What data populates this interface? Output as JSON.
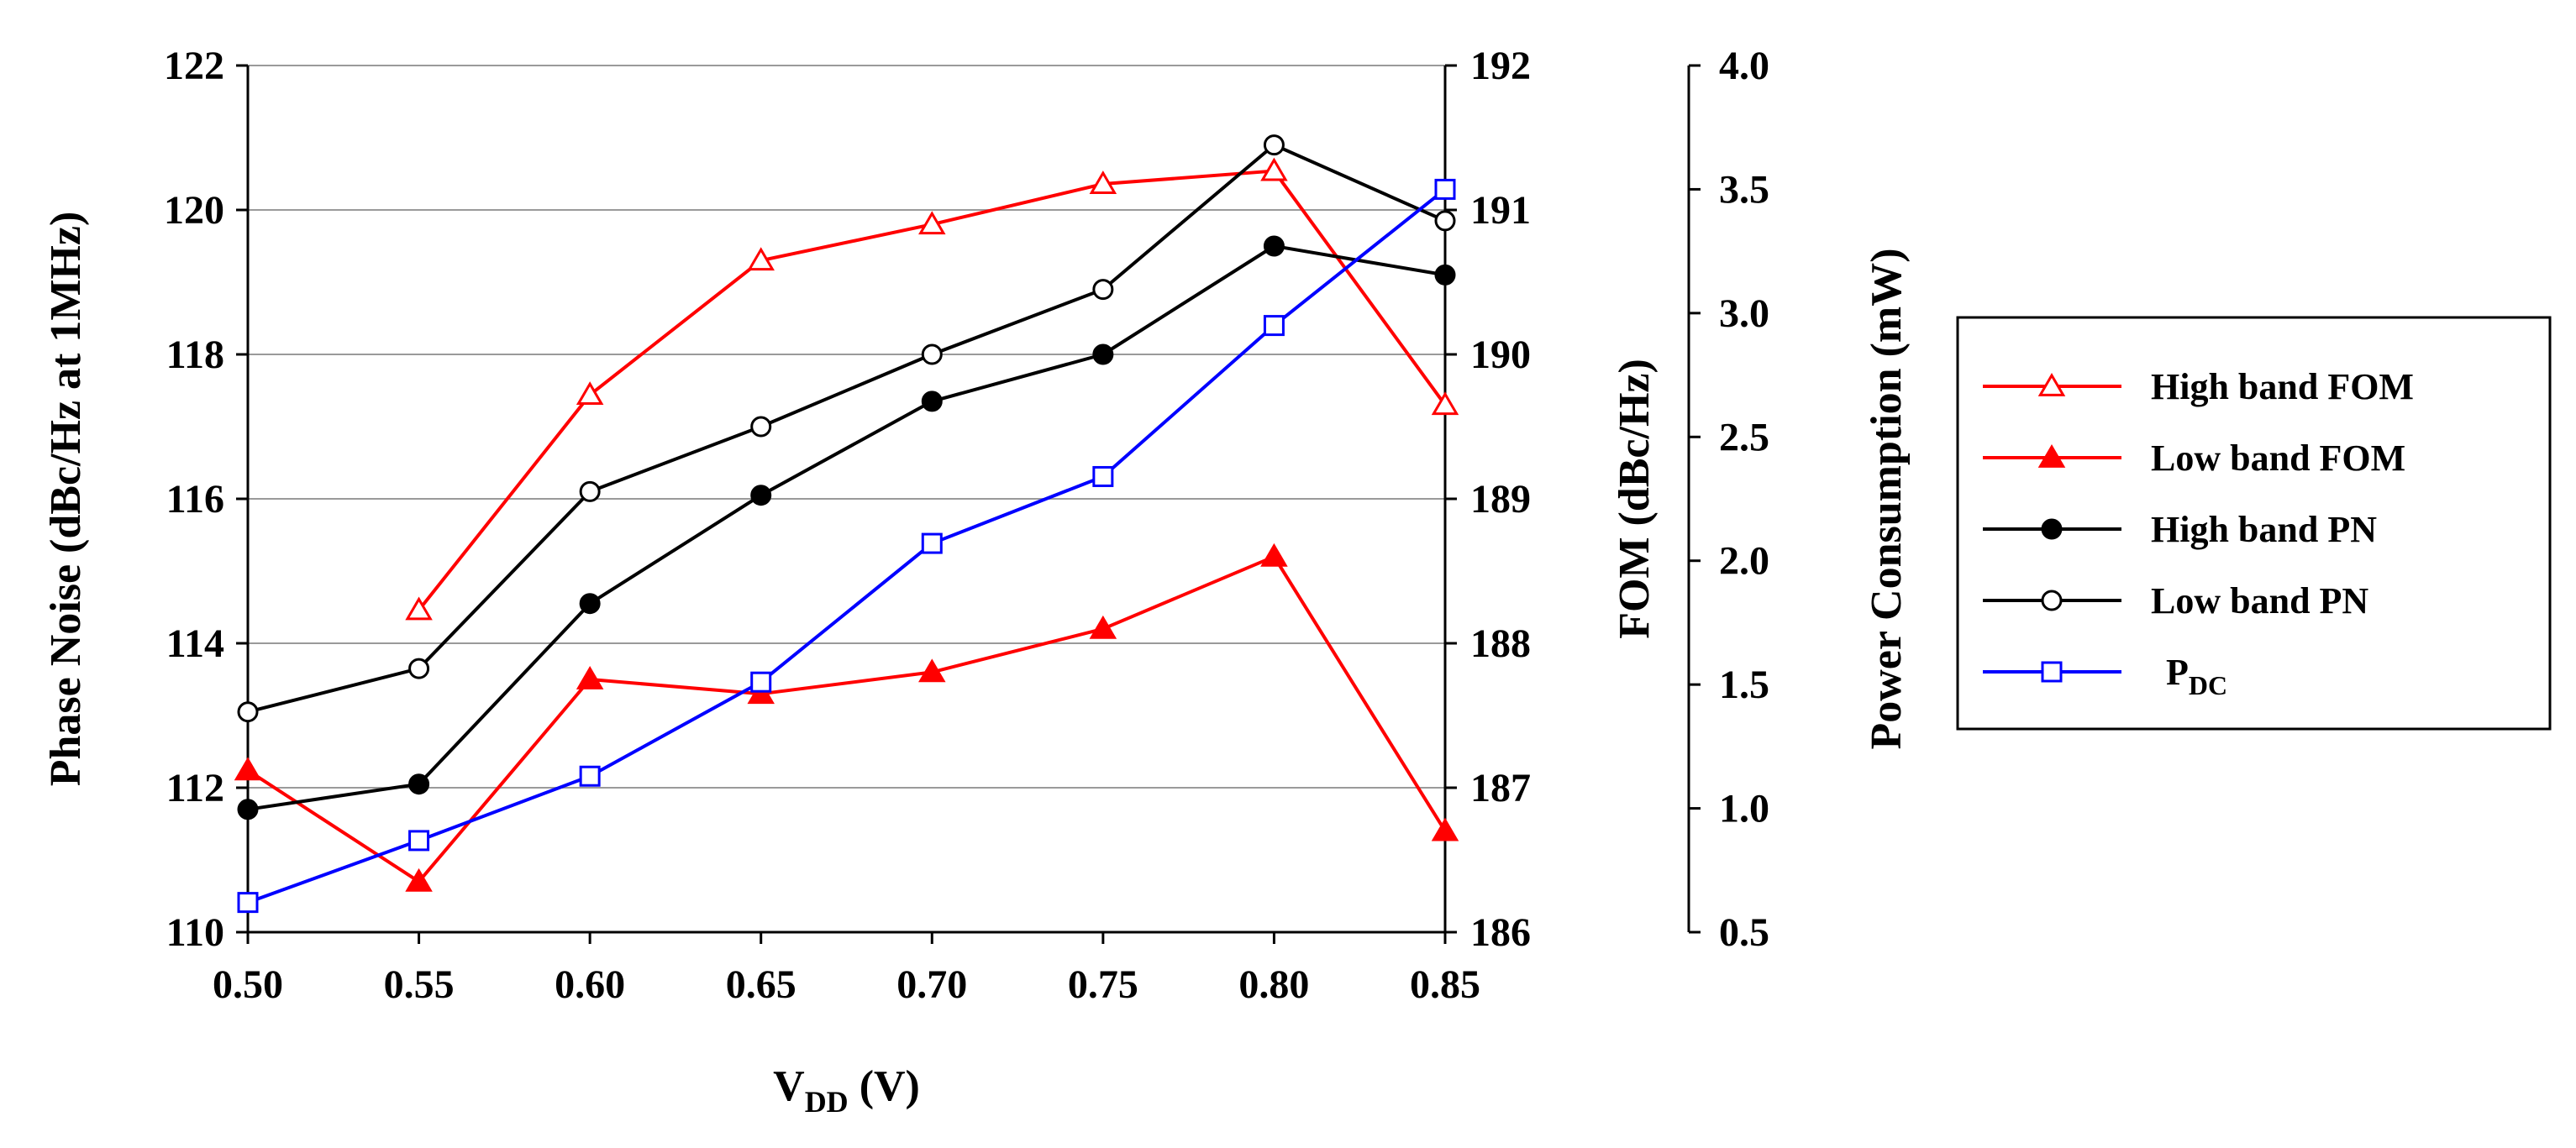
{
  "chart_data": {
    "type": "line",
    "title": "",
    "x": [
      0.5,
      0.55,
      0.6,
      0.65,
      0.7,
      0.75,
      0.8,
      0.85
    ],
    "x_tick_labels": [
      "0.50",
      "0.55",
      "0.60",
      "0.65",
      "0.70",
      "0.75",
      "0.80",
      "0.85"
    ],
    "xlabel_main": "V",
    "xlabel_sub": "DD",
    "xlabel_unit": " (V)",
    "xlim": [
      0.5,
      0.85
    ],
    "axes": {
      "left": {
        "label": "Phase Noise (dBc/Hz at 1MHz)",
        "ylim": [
          110,
          122
        ],
        "ticks": [
          "110",
          "112",
          "114",
          "116",
          "118",
          "120",
          "122"
        ]
      },
      "fom": {
        "label": "FOM (dBc/Hz)",
        "ylim": [
          186,
          192
        ],
        "ticks": [
          "186",
          "187",
          "188",
          "189",
          "190",
          "191",
          "192"
        ]
      },
      "power": {
        "label": "Power Consumption (mW)",
        "ylim": [
          0.5,
          4.0
        ],
        "ticks": [
          "0.5",
          "1.0",
          "1.5",
          "2.0",
          "2.5",
          "3.0",
          "3.5",
          "4.0"
        ]
      }
    },
    "grid": "horizontal",
    "legend_position": "right",
    "series": [
      {
        "name": "High band FOM",
        "legend_main": "High band FOM",
        "legend_sub": "",
        "axis": "fom",
        "color": "#ff0000",
        "marker": "triangle-open",
        "values": [
          null,
          188.23,
          189.72,
          190.65,
          190.9,
          191.18,
          191.27,
          189.65
        ]
      },
      {
        "name": "Low band FOM",
        "legend_main": "Low band FOM",
        "legend_sub": "",
        "axis": "fom",
        "color": "#ff0000",
        "marker": "triangle-filled",
        "values": [
          187.12,
          186.35,
          187.75,
          187.65,
          187.8,
          188.1,
          188.6,
          186.7
        ]
      },
      {
        "name": "High band PN",
        "legend_main": "High band PN",
        "legend_sub": "",
        "axis": "left",
        "color": "#000000",
        "marker": "circle-filled",
        "values": [
          111.7,
          112.05,
          114.55,
          116.05,
          117.35,
          118.0,
          119.5,
          119.1
        ]
      },
      {
        "name": "Low band PN",
        "legend_main": "Low band PN",
        "legend_sub": "",
        "axis": "left",
        "color": "#000000",
        "marker": "circle-open",
        "values": [
          113.05,
          113.65,
          116.1,
          117.0,
          118.0,
          118.9,
          120.9,
          119.85
        ]
      },
      {
        "name": "PDC",
        "legend_main": "P",
        "legend_sub": "DC",
        "axis": "power",
        "color": "#0000ff",
        "marker": "square-open",
        "values": [
          0.62,
          0.87,
          1.13,
          1.51,
          2.07,
          2.34,
          2.95,
          3.5
        ]
      }
    ]
  }
}
